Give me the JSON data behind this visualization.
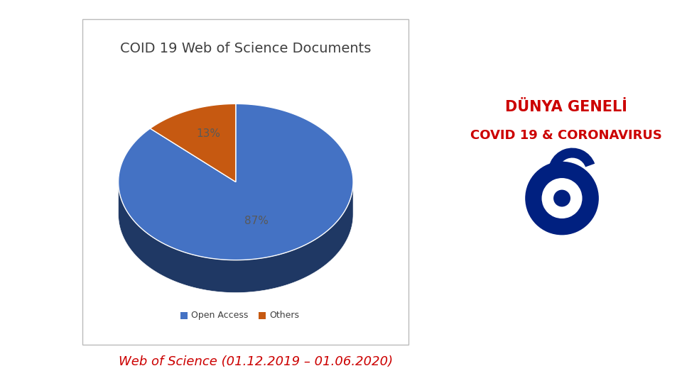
{
  "title": "COID 19 Web of Science Documents",
  "slices": [
    87,
    13
  ],
  "labels": [
    "Open Access",
    "Others"
  ],
  "colors": [
    "#4472C4",
    "#C65911"
  ],
  "pct_labels": [
    "87%",
    "13%"
  ],
  "legend_colors": [
    "#4472C4",
    "#C65911"
  ],
  "right_title1": "DÜNYA GENELİ",
  "right_title2": "COVID 19 & CORONAVIRUS",
  "right_title_color": "#CC0000",
  "bottom_text": "Web of Science (01.12.2019 – 01.06.2020)",
  "bottom_text_color": "#CC0000",
  "background_color": "#FFFFFF",
  "chart_bg": "#FFFFFF",
  "icon_color": "#002080",
  "shadow_color_oa": "#1F3864",
  "chart_border_color": "#BBBBBB",
  "pct_label_color": "#595959",
  "legend_text_color": "#404040",
  "title_color": "#404040"
}
